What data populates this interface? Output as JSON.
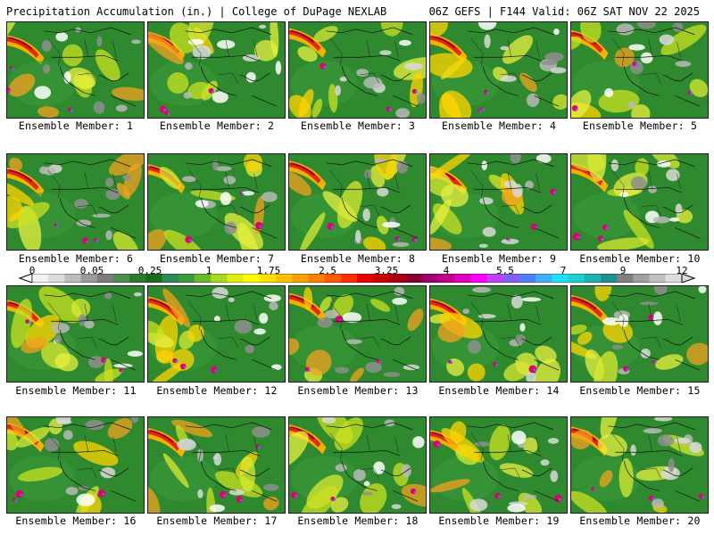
{
  "header": {
    "left_title": "Precipitation Accumulation (in.) | College of DuPage NEXLAB",
    "right_title": "06Z GEFS | F144 Valid: 06Z SAT NOV 22 2025"
  },
  "members": [
    {
      "id": 1,
      "label": "Ensemble Member: 1"
    },
    {
      "id": 2,
      "label": "Ensemble Member: 2"
    },
    {
      "id": 3,
      "label": "Ensemble Member: 3"
    },
    {
      "id": 4,
      "label": "Ensemble Member: 4"
    },
    {
      "id": 5,
      "label": "Ensemble Member: 5"
    },
    {
      "id": 6,
      "label": "Ensemble Member: 6"
    },
    {
      "id": 7,
      "label": "Ensemble Member: 7"
    },
    {
      "id": 8,
      "label": "Ensemble Member: 8"
    },
    {
      "id": 9,
      "label": "Ensemble Member: 9"
    },
    {
      "id": 10,
      "label": "Ensemble Member: 10"
    },
    {
      "id": 11,
      "label": "Ensemble Member: 11"
    },
    {
      "id": 12,
      "label": "Ensemble Member: 12"
    },
    {
      "id": 13,
      "label": "Ensemble Member: 13"
    },
    {
      "id": 14,
      "label": "Ensemble Member: 14"
    },
    {
      "id": 15,
      "label": "Ensemble Member: 15"
    },
    {
      "id": 16,
      "label": "Ensemble Member: 16"
    },
    {
      "id": 17,
      "label": "Ensemble Member: 17"
    },
    {
      "id": 18,
      "label": "Ensemble Member: 18"
    },
    {
      "id": 19,
      "label": "Ensemble Member: 19"
    },
    {
      "id": 20,
      "label": "Ensemble Member: 20"
    }
  ],
  "legend": {
    "tick_labels": [
      "0",
      "0.05",
      "0.25",
      "1",
      "1.75",
      "2.5",
      "3.25",
      "4",
      "5.5",
      "7",
      "9",
      "12"
    ],
    "colors": [
      "#f2f2f2",
      "#dcdcdc",
      "#bdbdbd",
      "#9a9a9a",
      "#7c7c7c",
      "#4e8f4e",
      "#2f7a2f",
      "#1d6b1d",
      "#2e8b57",
      "#3c9b3c",
      "#6ab82c",
      "#a8d820",
      "#e0ee10",
      "#ffff00",
      "#ffe000",
      "#ffc000",
      "#ffa000",
      "#ff7f00",
      "#ff5a00",
      "#ff3000",
      "#e80000",
      "#c80000",
      "#a80010",
      "#8c0030",
      "#a0006e",
      "#c0008c",
      "#e000c0",
      "#ff00ff",
      "#c040ff",
      "#8060ff",
      "#5080ff",
      "#40b0ff",
      "#20e0ff",
      "#20d0d0",
      "#20b0b0",
      "#209090",
      "#808080",
      "#a0a0a0",
      "#c0c0c0",
      "#dddddd"
    ]
  }
}
